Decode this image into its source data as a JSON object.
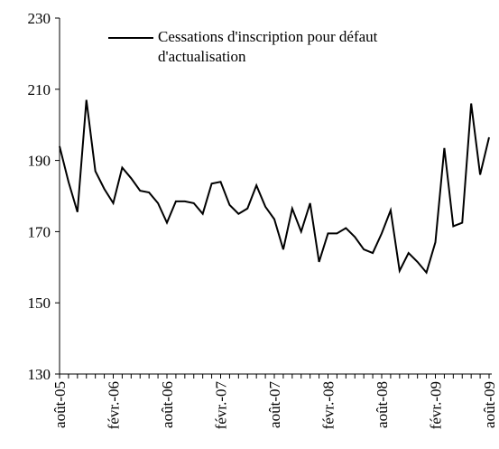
{
  "chart_data": {
    "type": "line",
    "categories": [
      "août-05",
      null,
      null,
      null,
      null,
      null,
      "févr.-06",
      null,
      null,
      null,
      null,
      null,
      "août-06",
      null,
      null,
      null,
      null,
      null,
      "févr.-07",
      null,
      null,
      null,
      null,
      null,
      "août-07",
      null,
      null,
      null,
      null,
      null,
      "févr.-08",
      null,
      null,
      null,
      null,
      null,
      "août-08",
      null,
      null,
      null,
      null,
      null,
      "févr.-09",
      null,
      null,
      null,
      null,
      null,
      "août-09"
    ],
    "series": [
      {
        "name": "Cessations d'inscription pour défaut d'actualisation",
        "color": "#000000",
        "values": [
          194,
          184,
          175.5,
          207,
          187,
          182,
          178,
          188,
          185,
          181.5,
          181,
          178,
          172.5,
          178.5,
          178.5,
          178,
          175,
          183.5,
          184,
          177.5,
          175,
          176.5,
          183,
          177,
          173.5,
          165,
          176.5,
          170,
          178,
          161.5,
          169.5,
          169.5,
          171,
          168.5,
          165,
          164,
          169.5,
          176,
          159,
          164,
          161.5,
          158.5,
          167,
          193.5,
          171.5,
          172.5,
          206,
          186,
          196.5
        ]
      }
    ],
    "ylim": [
      130,
      230
    ],
    "yticks": [
      130,
      150,
      170,
      190,
      210,
      230
    ],
    "grid": false
  }
}
